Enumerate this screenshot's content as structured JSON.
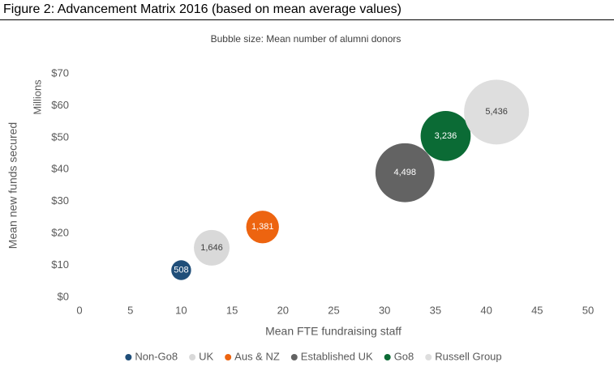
{
  "chart_data": {
    "type": "bubble",
    "title": "Figure 2: Advancement Matrix 2016 (based on mean average values)",
    "subtitle": "Bubble size: Mean number of alumni donors",
    "x_label": "Mean FTE fundraising staff",
    "y_label": "Mean new funds secured",
    "y_unit_label": "Millions",
    "xlim": [
      0,
      50
    ],
    "xticks": [
      0,
      5,
      10,
      15,
      20,
      25,
      30,
      35,
      40,
      45,
      50
    ],
    "ylim": [
      0,
      70
    ],
    "yticks": [
      {
        "value": 0,
        "label": "$0"
      },
      {
        "value": 10,
        "label": "$10"
      },
      {
        "value": 20,
        "label": "$20"
      },
      {
        "value": 30,
        "label": "$30"
      },
      {
        "value": 40,
        "label": "$40"
      },
      {
        "value": 50,
        "label": "$50"
      },
      {
        "value": 60,
        "label": "$60"
      },
      {
        "value": 70,
        "label": "$70"
      }
    ],
    "grid": false,
    "legend": "bottom",
    "series": [
      {
        "name": "Non-Go8",
        "color": "#1f4e79",
        "x": [
          10
        ],
        "values": [
          8.5
        ],
        "sizes": [
          508
        ],
        "size_labels": [
          "508"
        ]
      },
      {
        "name": "UK",
        "color": "#d9d9d9",
        "x": [
          13
        ],
        "values": [
          15.5
        ],
        "sizes": [
          1646
        ],
        "size_labels": [
          "1,646"
        ]
      },
      {
        "name": "Aus & NZ",
        "color": "#ed6410",
        "x": [
          18
        ],
        "values": [
          22
        ],
        "sizes": [
          1381
        ],
        "size_labels": [
          "1,381"
        ]
      },
      {
        "name": "Established UK",
        "color": "#636363",
        "x": [
          32
        ],
        "values": [
          39
        ],
        "sizes": [
          4498
        ],
        "size_labels": [
          "4,498"
        ]
      },
      {
        "name": "Go8",
        "color": "#0b6b35",
        "x": [
          36
        ],
        "values": [
          50.5
        ],
        "sizes": [
          3236
        ],
        "size_labels": [
          "3,236"
        ]
      },
      {
        "name": "Russell Group",
        "color": "#dedede",
        "x": [
          41
        ],
        "values": [
          58
        ],
        "sizes": [
          5436
        ],
        "size_labels": [
          "5,436"
        ]
      }
    ]
  }
}
